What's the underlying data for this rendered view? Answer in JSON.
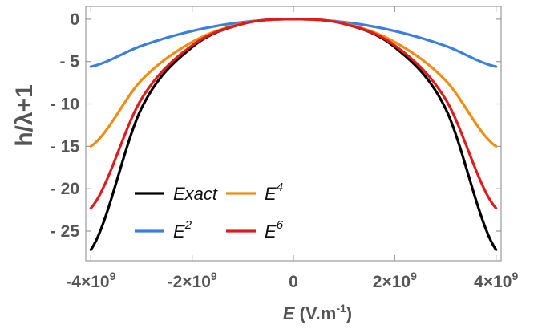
{
  "chart_data": {
    "type": "line",
    "title": "",
    "xlabel": {
      "main": "E",
      "unit_prefix": " (V.m",
      "unit_exp": "-1",
      "unit_suffix": ")"
    },
    "ylabel": "h/λ+1",
    "xlim": [
      -4100000000.0,
      4100000000.0
    ],
    "ylim": [
      -28.5,
      1.5
    ],
    "x_ticks": [
      {
        "value": -4000000000.0,
        "mant": "-4",
        "times": "×10",
        "exp": "9"
      },
      {
        "value": -2000000000.0,
        "mant": "-2",
        "times": "×10",
        "exp": "9"
      },
      {
        "value": 0,
        "mant": "0",
        "times": "",
        "exp": ""
      },
      {
        "value": 2000000000.0,
        "mant": "2",
        "times": "×10",
        "exp": "9"
      },
      {
        "value": 4000000000.0,
        "mant": "4",
        "times": "×10",
        "exp": "9"
      }
    ],
    "y_ticks": [
      {
        "value": 0,
        "label": "0"
      },
      {
        "value": -5,
        "label": "- 5"
      },
      {
        "value": -10,
        "label": "- 10"
      },
      {
        "value": -15,
        "label": "- 15"
      },
      {
        "value": -20,
        "label": "- 20"
      },
      {
        "value": -25,
        "label": "- 25"
      }
    ],
    "x_range": [
      -4000000000.0,
      4000000000.0
    ],
    "series": [
      {
        "name": "Exact",
        "label_base": "Exact",
        "label_exp": "",
        "color": "#000000",
        "x": [
          -4000000000.0,
          -3000000000.0,
          -2000000000.0,
          -1000000000.0,
          0,
          1000000000.0,
          2000000000.0,
          3000000000.0,
          4000000000.0
        ],
        "y": [
          -27.2,
          -10.5,
          -3.3,
          -0.55,
          0,
          -0.55,
          -3.3,
          -10.5,
          -27.2
        ]
      },
      {
        "name": "E2",
        "label_base": "E",
        "label_exp": "2",
        "color": "#3a7fe0",
        "x": [
          -4000000000.0,
          -3000000000.0,
          -2000000000.0,
          -1000000000.0,
          0,
          1000000000.0,
          2000000000.0,
          3000000000.0,
          4000000000.0
        ],
        "y": [
          -5.6,
          -3.15,
          -1.4,
          -0.35,
          0,
          -0.35,
          -1.4,
          -3.15,
          -5.6
        ]
      },
      {
        "name": "E4",
        "label_base": "E",
        "label_exp": "4",
        "color": "#f08c10",
        "x": [
          -4000000000.0,
          -3000000000.0,
          -2000000000.0,
          -1000000000.0,
          0,
          1000000000.0,
          2000000000.0,
          3000000000.0,
          4000000000.0
        ],
        "y": [
          -15.0,
          -7.2,
          -2.7,
          -0.5,
          0,
          -0.5,
          -2.7,
          -7.2,
          -15.0
        ]
      },
      {
        "name": "E6",
        "label_base": "E",
        "label_exp": "6",
        "color": "#e01b1b",
        "x": [
          -4000000000.0,
          -3000000000.0,
          -2000000000.0,
          -1000000000.0,
          0,
          1000000000.0,
          2000000000.0,
          3000000000.0,
          4000000000.0
        ],
        "y": [
          -22.3,
          -9.4,
          -3.1,
          -0.55,
          0,
          -0.55,
          -3.1,
          -9.4,
          -22.3
        ]
      }
    ],
    "legend_position": "bottom-left",
    "grid": false
  }
}
